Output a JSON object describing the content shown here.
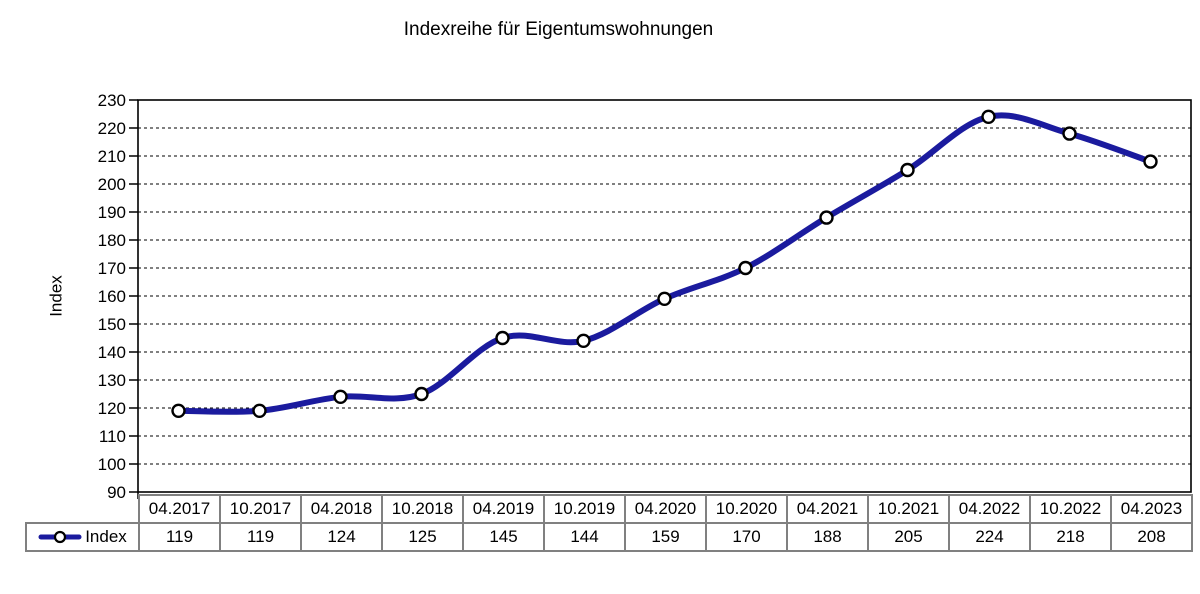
{
  "chart_data": {
    "type": "line",
    "title": "Indexreihe für Eigentumswohnungen",
    "ylabel": "Index",
    "categories": [
      "04.2017",
      "10.2017",
      "04.2018",
      "10.2018",
      "04.2019",
      "10.2019",
      "04.2020",
      "10.2020",
      "04.2021",
      "10.2021",
      "04.2022",
      "10.2022",
      "04.2023"
    ],
    "series": [
      {
        "name": "Index",
        "values": [
          119,
          119,
          124,
          125,
          145,
          144,
          159,
          170,
          188,
          205,
          224,
          218,
          208
        ]
      }
    ],
    "ylim": [
      90,
      230
    ],
    "ytick_step": 10,
    "grid": "horizontal-dashed",
    "smoothed_line": true,
    "legend_position": "table-row-left",
    "colors": {
      "line": "#1b1b9e",
      "marker_fill": "#ffffff",
      "marker_stroke": "#000000",
      "grid": "#000000",
      "plot_border": "#000000",
      "table_border": "#808080",
      "text": "#000000",
      "background": "#ffffff"
    }
  }
}
